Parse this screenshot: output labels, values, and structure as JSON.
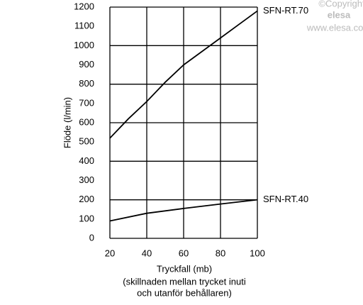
{
  "chart_data": {
    "type": "line",
    "xlabel": "Tryckfall (mb)",
    "xlabel_note": [
      "(skillnaden mellan trycket inuti",
      "och utanför behållaren)"
    ],
    "ylabel": "Flöde (l/min)",
    "annotations": [
      "©Copyright",
      "elesa",
      "www.elesa.com"
    ],
    "xlim": [
      20,
      100
    ],
    "xticks": [
      20,
      40,
      60,
      80,
      100
    ],
    "ylim": [
      0,
      1200
    ],
    "yticks": [
      0,
      100,
      200,
      300,
      400,
      500,
      600,
      700,
      800,
      900,
      1000,
      1100,
      1200
    ],
    "grid": true,
    "series": [
      {
        "name": "SFN-RT.70",
        "color": "#000000",
        "x": [
          20,
          30,
          40,
          50,
          60,
          70,
          80,
          90,
          100
        ],
        "values": [
          520,
          620,
          710,
          810,
          900,
          970,
          1040,
          1110,
          1180
        ]
      },
      {
        "name": "SFN-RT.40",
        "color": "#000000",
        "x": [
          20,
          40,
          60,
          80,
          100
        ],
        "values": [
          90,
          130,
          155,
          178,
          200
        ]
      }
    ]
  }
}
